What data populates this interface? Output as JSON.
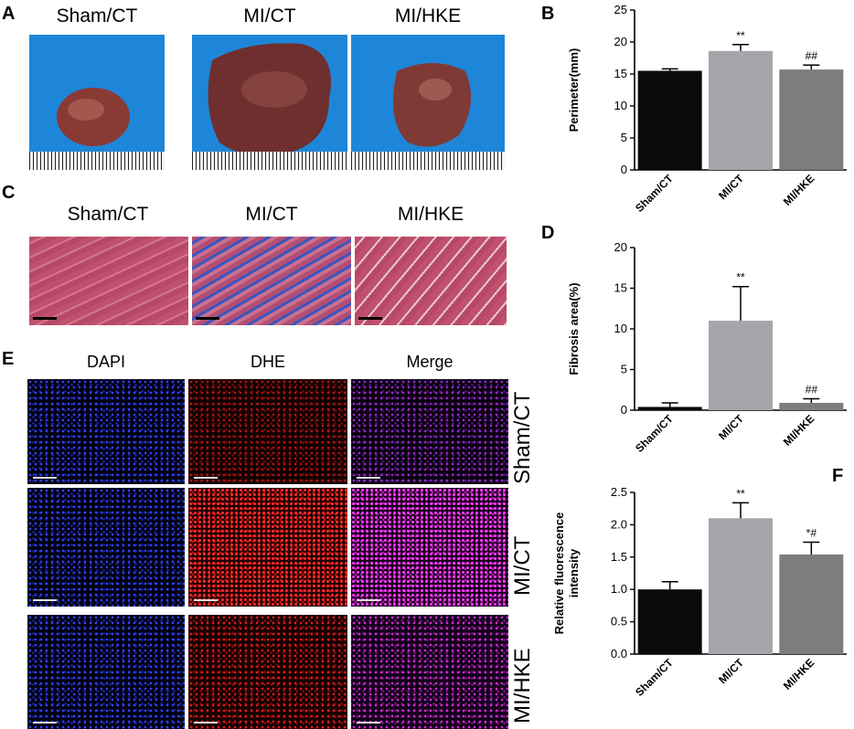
{
  "panel_a": {
    "letter": "A",
    "groups": [
      "Sham/CT",
      "MI/CT",
      "MI/HKE"
    ]
  },
  "panel_c": {
    "letter": "C",
    "groups": [
      "Sham/CT",
      "MI/CT",
      "MI/HKE"
    ]
  },
  "panel_e": {
    "letter": "E",
    "stains": [
      "DAPI",
      "DHE",
      "Merge"
    ],
    "rows": [
      "Sham/CT",
      "MI/CT",
      "MI/HKE"
    ]
  },
  "colors": {
    "bar_sham": "#0a0a0a",
    "bar_mi": "#a5a5ab",
    "bar_hke": "#7d7d7d",
    "heart_bg": "#1e86d8",
    "masson_red": "#c0506e",
    "masson_blue": "#3a55c0",
    "dapi": "#2233ff",
    "dhe": "#ff1a1a",
    "merge": "#d52ad5"
  },
  "chart_data": [
    {
      "panel": "B",
      "type": "bar",
      "categories": [
        "Sham/CT",
        "MI/CT",
        "MI/HKE"
      ],
      "values": [
        15.5,
        18.6,
        15.7
      ],
      "errors": [
        0.3,
        1.0,
        0.7
      ],
      "annotations": [
        "",
        "**",
        "##"
      ],
      "ylabel": "Perimeter(mm)",
      "ylim": [
        0,
        25
      ],
      "yticks": [
        0,
        5,
        10,
        15,
        20,
        25
      ],
      "grid": false
    },
    {
      "panel": "D",
      "type": "bar",
      "categories": [
        "Sham/CT",
        "MI/CT",
        "MI/HKE"
      ],
      "values": [
        0.4,
        11.0,
        0.9
      ],
      "errors": [
        0.5,
        4.2,
        0.5
      ],
      "annotations": [
        "",
        "**",
        "##"
      ],
      "ylabel": "Fibrosis area(%)",
      "ylim": [
        0,
        20
      ],
      "yticks": [
        0,
        5,
        10,
        15,
        20
      ],
      "grid": false
    },
    {
      "panel": "F",
      "type": "bar",
      "categories": [
        "Sham/CT",
        "MI/CT",
        "MI/HKE"
      ],
      "values": [
        1.0,
        2.1,
        1.54
      ],
      "errors": [
        0.12,
        0.24,
        0.19
      ],
      "annotations": [
        "",
        "**",
        "*#"
      ],
      "ylabel": "Relative fluorescence intensity",
      "ylabel_lines": [
        "Relative fluorescence",
        "intensity"
      ],
      "ylim": [
        0,
        2.5
      ],
      "yticks": [
        "0.0",
        "0.5",
        "1.0",
        "1.5",
        "2.0",
        "2.5"
      ],
      "grid": false
    }
  ]
}
